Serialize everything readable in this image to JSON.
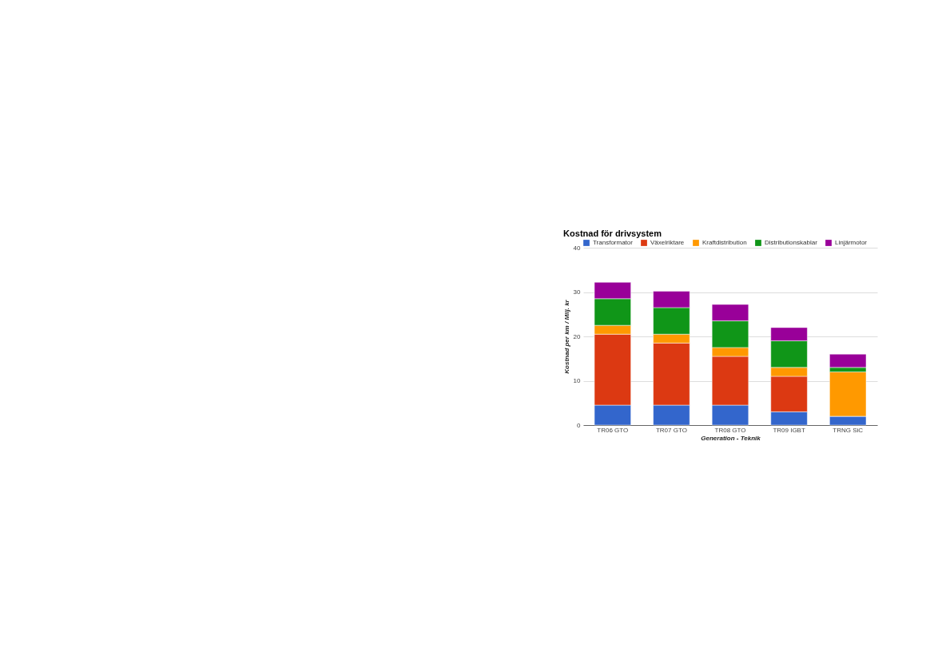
{
  "chart_data": {
    "type": "bar",
    "title": "Kostnad för drivsystem",
    "xlabel": "Generation - Teknik",
    "ylabel": "Kostnad per km / Milj. kr",
    "categories": [
      "TR06 GTO",
      "TR07 GTO",
      "TR08 GTO",
      "TR09 IGBT",
      "TRNG SiC"
    ],
    "stacked": true,
    "series": [
      {
        "name": "Transformator",
        "color": "#3366cc",
        "values": [
          4.5,
          4.5,
          4.5,
          3,
          2
        ]
      },
      {
        "name": "Växelriktare",
        "color": "#dc3912",
        "values": [
          16,
          14,
          11,
          8,
          0
        ]
      },
      {
        "name": "Kraftdistribution",
        "color": "#ff9900",
        "values": [
          2,
          2,
          2,
          2,
          10
        ]
      },
      {
        "name": "Distributionskablar",
        "color": "#109618",
        "values": [
          6,
          6,
          6,
          6,
          1
        ]
      },
      {
        "name": "Linjärmotor",
        "color": "#990099",
        "values": [
          3.7,
          3.7,
          3.7,
          3,
          3
        ]
      }
    ],
    "ylim": [
      0,
      40
    ],
    "yticks": [
      0,
      10,
      20,
      30,
      40
    ],
    "grid": "y",
    "legend": "top left"
  }
}
